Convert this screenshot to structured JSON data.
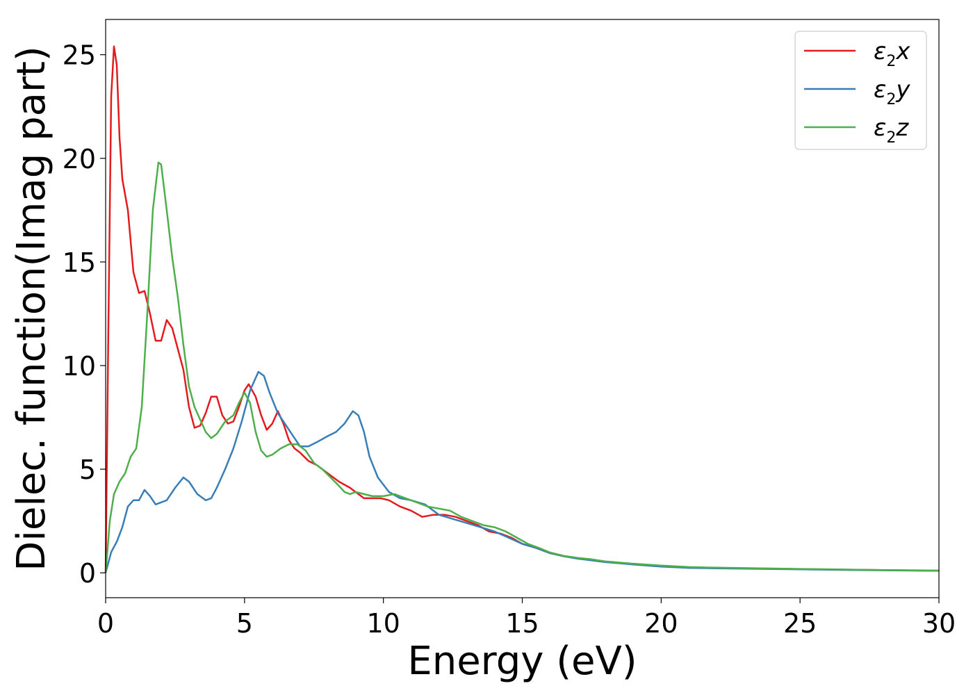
{
  "chart_data": {
    "type": "line",
    "xlabel": "Energy (eV)",
    "ylabel": "Dielec. function(Imag part)",
    "xlim": [
      0,
      30
    ],
    "ylim": [
      -1.2,
      26.7
    ],
    "xticks": [
      "0",
      "5",
      "10",
      "15",
      "20",
      "25",
      "30"
    ],
    "yticks": [
      "0",
      "5",
      "10",
      "15",
      "20",
      "25"
    ],
    "grid": false,
    "legend_position": "top-right",
    "series": [
      {
        "name": "ε2x",
        "legend": {
          "symbol": "ε",
          "sub": "2",
          "var": "x"
        },
        "color": "#e41a1c",
        "points": [
          [
            0,
            0
          ],
          [
            0.1,
            12
          ],
          [
            0.2,
            23
          ],
          [
            0.3,
            25.4
          ],
          [
            0.4,
            24.5
          ],
          [
            0.5,
            21
          ],
          [
            0.6,
            19
          ],
          [
            0.8,
            17.5
          ],
          [
            1.0,
            14.5
          ],
          [
            1.2,
            13.5
          ],
          [
            1.4,
            13.6
          ],
          [
            1.6,
            12.5
          ],
          [
            1.8,
            11.2
          ],
          [
            2.0,
            11.2
          ],
          [
            2.2,
            12.2
          ],
          [
            2.4,
            11.8
          ],
          [
            2.6,
            10.8
          ],
          [
            2.8,
            9.8
          ],
          [
            3.0,
            8.0
          ],
          [
            3.2,
            7.0
          ],
          [
            3.4,
            7.1
          ],
          [
            3.6,
            7.7
          ],
          [
            3.8,
            8.5
          ],
          [
            4.0,
            8.5
          ],
          [
            4.2,
            7.6
          ],
          [
            4.4,
            7.2
          ],
          [
            4.6,
            7.3
          ],
          [
            4.8,
            8.0
          ],
          [
            5.0,
            8.8
          ],
          [
            5.15,
            9.1
          ],
          [
            5.4,
            8.5
          ],
          [
            5.6,
            7.6
          ],
          [
            5.8,
            6.9
          ],
          [
            6.0,
            7.2
          ],
          [
            6.2,
            7.8
          ],
          [
            6.4,
            7.2
          ],
          [
            6.6,
            6.4
          ],
          [
            6.8,
            6.0
          ],
          [
            7.0,
            5.8
          ],
          [
            7.3,
            5.4
          ],
          [
            7.6,
            5.2
          ],
          [
            8.0,
            4.8
          ],
          [
            8.4,
            4.4
          ],
          [
            8.8,
            4.1
          ],
          [
            9.0,
            3.9
          ],
          [
            9.3,
            3.6
          ],
          [
            9.6,
            3.6
          ],
          [
            9.9,
            3.6
          ],
          [
            10.2,
            3.5
          ],
          [
            10.6,
            3.2
          ],
          [
            11.0,
            3.0
          ],
          [
            11.4,
            2.7
          ],
          [
            11.8,
            2.8
          ],
          [
            12.2,
            2.8
          ],
          [
            12.6,
            2.7
          ],
          [
            13.0,
            2.5
          ],
          [
            13.4,
            2.3
          ],
          [
            13.8,
            2.0
          ],
          [
            14.2,
            1.9
          ],
          [
            14.6,
            1.7
          ],
          [
            15.0,
            1.4
          ],
          [
            15.5,
            1.2
          ],
          [
            16.0,
            0.95
          ],
          [
            16.5,
            0.8
          ],
          [
            17.0,
            0.7
          ],
          [
            17.5,
            0.6
          ],
          [
            18.0,
            0.52
          ],
          [
            19.0,
            0.42
          ],
          [
            20.0,
            0.33
          ],
          [
            21.0,
            0.27
          ],
          [
            22.0,
            0.24
          ],
          [
            24.0,
            0.2
          ],
          [
            26.0,
            0.16
          ],
          [
            28.0,
            0.13
          ],
          [
            30.0,
            0.1
          ]
        ]
      },
      {
        "name": "ε2y",
        "legend": {
          "symbol": "ε",
          "sub": "2",
          "var": "y"
        },
        "color": "#377eb8",
        "points": [
          [
            0,
            0
          ],
          [
            0.2,
            1.0
          ],
          [
            0.4,
            1.5
          ],
          [
            0.6,
            2.2
          ],
          [
            0.8,
            3.2
          ],
          [
            1.0,
            3.5
          ],
          [
            1.2,
            3.5
          ],
          [
            1.4,
            4.0
          ],
          [
            1.6,
            3.7
          ],
          [
            1.8,
            3.3
          ],
          [
            2.0,
            3.4
          ],
          [
            2.2,
            3.5
          ],
          [
            2.5,
            4.1
          ],
          [
            2.8,
            4.6
          ],
          [
            3.0,
            4.4
          ],
          [
            3.3,
            3.8
          ],
          [
            3.6,
            3.5
          ],
          [
            3.8,
            3.6
          ],
          [
            4.0,
            4.1
          ],
          [
            4.3,
            5.0
          ],
          [
            4.6,
            6.0
          ],
          [
            4.9,
            7.3
          ],
          [
            5.2,
            8.8
          ],
          [
            5.5,
            9.7
          ],
          [
            5.7,
            9.5
          ],
          [
            5.9,
            8.7
          ],
          [
            6.2,
            7.7
          ],
          [
            6.5,
            7.1
          ],
          [
            6.8,
            6.5
          ],
          [
            7.0,
            6.1
          ],
          [
            7.3,
            6.1
          ],
          [
            7.6,
            6.3
          ],
          [
            8.0,
            6.6
          ],
          [
            8.3,
            6.8
          ],
          [
            8.6,
            7.2
          ],
          [
            8.9,
            7.8
          ],
          [
            9.1,
            7.6
          ],
          [
            9.3,
            6.8
          ],
          [
            9.5,
            5.6
          ],
          [
            9.8,
            4.6
          ],
          [
            10.2,
            3.9
          ],
          [
            10.6,
            3.6
          ],
          [
            11.0,
            3.5
          ],
          [
            11.5,
            3.3
          ],
          [
            12.0,
            2.8
          ],
          [
            12.5,
            2.6
          ],
          [
            13.0,
            2.4
          ],
          [
            13.5,
            2.2
          ],
          [
            14.0,
            2.0
          ],
          [
            14.5,
            1.7
          ],
          [
            15.0,
            1.4
          ],
          [
            15.5,
            1.2
          ],
          [
            16.0,
            0.95
          ],
          [
            16.5,
            0.8
          ],
          [
            17.0,
            0.68
          ],
          [
            17.5,
            0.6
          ],
          [
            18.0,
            0.52
          ],
          [
            19.0,
            0.4
          ],
          [
            20.0,
            0.3
          ],
          [
            21.0,
            0.24
          ],
          [
            22.0,
            0.22
          ],
          [
            24.0,
            0.18
          ],
          [
            26.0,
            0.15
          ],
          [
            28.0,
            0.12
          ],
          [
            30.0,
            0.1
          ]
        ]
      },
      {
        "name": "ε2z",
        "legend": {
          "symbol": "ε",
          "sub": "2",
          "var": "z"
        },
        "color": "#4daf4a",
        "points": [
          [
            0,
            0
          ],
          [
            0.15,
            2.5
          ],
          [
            0.3,
            3.8
          ],
          [
            0.5,
            4.4
          ],
          [
            0.7,
            4.8
          ],
          [
            0.9,
            5.6
          ],
          [
            1.1,
            6.0
          ],
          [
            1.3,
            8.0
          ],
          [
            1.5,
            12.5
          ],
          [
            1.7,
            17.5
          ],
          [
            1.9,
            19.8
          ],
          [
            2.0,
            19.7
          ],
          [
            2.2,
            17.5
          ],
          [
            2.4,
            15.2
          ],
          [
            2.6,
            13.3
          ],
          [
            2.8,
            11.0
          ],
          [
            3.0,
            9.0
          ],
          [
            3.2,
            8.0
          ],
          [
            3.4,
            7.4
          ],
          [
            3.6,
            6.8
          ],
          [
            3.8,
            6.5
          ],
          [
            4.0,
            6.7
          ],
          [
            4.3,
            7.3
          ],
          [
            4.6,
            7.6
          ],
          [
            4.8,
            8.2
          ],
          [
            5.0,
            8.7
          ],
          [
            5.2,
            8.2
          ],
          [
            5.4,
            6.8
          ],
          [
            5.6,
            5.9
          ],
          [
            5.8,
            5.6
          ],
          [
            6.0,
            5.7
          ],
          [
            6.3,
            6.0
          ],
          [
            6.6,
            6.2
          ],
          [
            6.9,
            6.2
          ],
          [
            7.2,
            5.9
          ],
          [
            7.5,
            5.3
          ],
          [
            7.8,
            5.0
          ],
          [
            8.1,
            4.6
          ],
          [
            8.4,
            4.2
          ],
          [
            8.6,
            3.9
          ],
          [
            8.8,
            3.8
          ],
          [
            9.0,
            3.9
          ],
          [
            9.3,
            3.8
          ],
          [
            9.6,
            3.7
          ],
          [
            10.0,
            3.7
          ],
          [
            10.4,
            3.8
          ],
          [
            10.8,
            3.6
          ],
          [
            11.2,
            3.4
          ],
          [
            11.6,
            3.2
          ],
          [
            12.0,
            3.1
          ],
          [
            12.4,
            3.0
          ],
          [
            12.8,
            2.7
          ],
          [
            13.2,
            2.5
          ],
          [
            13.6,
            2.3
          ],
          [
            14.0,
            2.2
          ],
          [
            14.4,
            2.0
          ],
          [
            14.8,
            1.7
          ],
          [
            15.2,
            1.4
          ],
          [
            15.6,
            1.2
          ],
          [
            16.0,
            0.98
          ],
          [
            16.5,
            0.82
          ],
          [
            17.0,
            0.72
          ],
          [
            17.5,
            0.65
          ],
          [
            18.0,
            0.55
          ],
          [
            19.0,
            0.44
          ],
          [
            20.0,
            0.35
          ],
          [
            21.0,
            0.28
          ],
          [
            22.0,
            0.25
          ],
          [
            24.0,
            0.21
          ],
          [
            26.0,
            0.17
          ],
          [
            28.0,
            0.13
          ],
          [
            30.0,
            0.11
          ]
        ]
      }
    ]
  }
}
